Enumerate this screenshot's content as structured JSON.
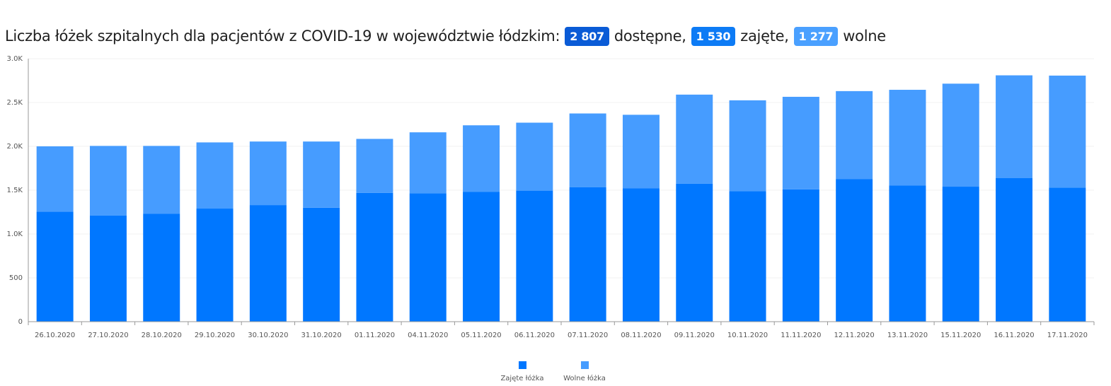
{
  "title": {
    "prefix": "Liczba łóżek szpitalnych dla pacjentów z COVID-19 w województwie łódzkim:",
    "total_value": "2 807",
    "total_label": "dostępne,",
    "occupied_value": "1 530",
    "occupied_label": "zajęte,",
    "free_value": "1 277",
    "free_label": "wolne"
  },
  "colors": {
    "occupied": "#0077ff",
    "free": "#469cff",
    "badge_total": "#0a5bd6",
    "badge_occupied": "#0d7bf5",
    "badge_free": "#4aa0ff"
  },
  "chart_data": {
    "type": "bar",
    "stacked": true,
    "categories": [
      "26.10.2020",
      "27.10.2020",
      "28.10.2020",
      "29.10.2020",
      "30.10.2020",
      "31.10.2020",
      "01.11.2020",
      "04.11.2020",
      "05.11.2020",
      "06.11.2020",
      "07.11.2020",
      "08.11.2020",
      "09.11.2020",
      "10.11.2020",
      "11.11.2020",
      "12.11.2020",
      "13.11.2020",
      "15.11.2020",
      "16.11.2020",
      "17.11.2020"
    ],
    "series": [
      {
        "name": "Zajęte łóżka",
        "values": [
          1255,
          1210,
          1230,
          1290,
          1330,
          1300,
          1470,
          1465,
          1480,
          1495,
          1535,
          1520,
          1575,
          1490,
          1510,
          1625,
          1555,
          1540,
          1640,
          1530
        ]
      },
      {
        "name": "Wolne łóżka",
        "values": [
          745,
          795,
          775,
          755,
          725,
          755,
          615,
          695,
          760,
          775,
          840,
          840,
          1015,
          1035,
          1055,
          1005,
          1090,
          1175,
          1170,
          1277
        ]
      }
    ],
    "ylim": [
      0,
      3000
    ],
    "yticks": [
      0,
      500,
      1000,
      1500,
      2000,
      2500,
      3000
    ],
    "ytick_labels": [
      "0",
      "500",
      "1.0K",
      "1.5K",
      "2.0K",
      "2.5K",
      "3.0K"
    ],
    "grid": true,
    "legend_position": "bottom"
  }
}
